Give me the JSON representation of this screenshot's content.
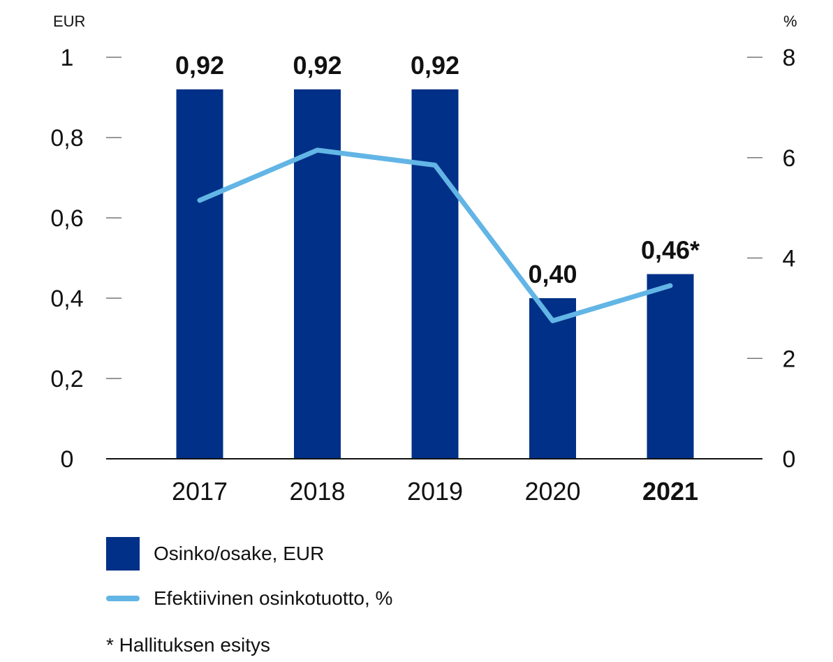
{
  "chart_data": {
    "type": "bar",
    "categories": [
      "2017",
      "2018",
      "2019",
      "2020",
      "2021"
    ],
    "highlight_category": "2021",
    "series": [
      {
        "name": "Osinko/osake, EUR",
        "kind": "bar",
        "axis": "left",
        "color": "#003087",
        "values": [
          0.92,
          0.92,
          0.92,
          0.4,
          0.46
        ],
        "labels": [
          "0,92",
          "0,92",
          "0,92",
          "0,40",
          "0,46*"
        ]
      },
      {
        "name": "Efektiivinen osinkotuotto, %",
        "kind": "line",
        "axis": "right",
        "color": "#62b5e5",
        "values": [
          5.15,
          6.15,
          5.85,
          2.75,
          3.45
        ]
      }
    ],
    "left_axis": {
      "unit": "EUR",
      "min": 0,
      "max": 1,
      "ticks": [
        "0",
        "0,2",
        "0,4",
        "0,6",
        "0,8",
        "1"
      ]
    },
    "right_axis": {
      "unit": "%",
      "min": 0,
      "max": 8,
      "ticks": [
        "0",
        "2",
        "4",
        "6",
        "8"
      ]
    },
    "grid": false,
    "legend_position": "bottom-left",
    "footnote": "* Hallituksen esitys"
  }
}
